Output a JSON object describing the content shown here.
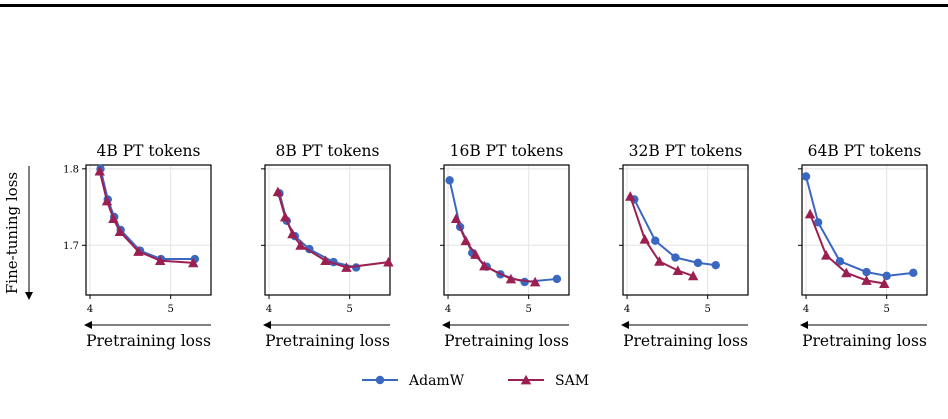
{
  "colors": {
    "adamw": "#3a67c0",
    "sam": "#9c1f52",
    "grid": "#e4e4e4"
  },
  "figure": {
    "ylabel": "Fine-tuning loss",
    "legend": {
      "placement": "bottom-center",
      "entries": [
        "AdamW",
        "SAM"
      ]
    }
  },
  "chart_data": [
    {
      "type": "line",
      "title": "4B PT tokens",
      "xlabel": "Pretraining loss",
      "ylabel": "Fine-tuning loss",
      "xlim": [
        3.95,
        5.5
      ],
      "ylim": [
        1.635,
        1.805
      ],
      "xticks": [
        4,
        5
      ],
      "yticks": [
        1.7,
        1.8
      ],
      "grid": true,
      "series": [
        {
          "name": "AdamW",
          "marker": "circle",
          "x": [
            4.13,
            4.22,
            4.3,
            4.38,
            4.62,
            4.88,
            5.3
          ],
          "y": [
            1.8,
            1.76,
            1.737,
            1.72,
            1.693,
            1.682,
            1.682
          ]
        },
        {
          "name": "SAM",
          "marker": "triangle",
          "x": [
            4.12,
            4.21,
            4.29,
            4.37,
            4.6,
            4.87,
            5.28
          ],
          "y": [
            1.797,
            1.758,
            1.735,
            1.718,
            1.692,
            1.68,
            1.677
          ]
        }
      ]
    },
    {
      "type": "line",
      "title": "8B PT tokens",
      "xlabel": "Pretraining loss",
      "ylabel": "",
      "xlim": [
        3.95,
        5.5
      ],
      "ylim": [
        1.635,
        1.805
      ],
      "xticks": [
        4,
        5
      ],
      "yticks": [
        1.7,
        1.8
      ],
      "grid": true,
      "series": [
        {
          "name": "AdamW",
          "marker": "circle",
          "x": [
            4.13,
            4.22,
            4.32,
            4.5,
            4.8,
            5.08
          ],
          "y": [
            1.768,
            1.732,
            1.712,
            1.695,
            1.678,
            1.671
          ]
        },
        {
          "name": "SAM",
          "marker": "triangle",
          "x": [
            4.11,
            4.2,
            4.29,
            4.39,
            4.7,
            4.96,
            5.48
          ],
          "y": [
            1.77,
            1.737,
            1.715,
            1.7,
            1.68,
            1.671,
            1.678
          ]
        }
      ]
    },
    {
      "type": "line",
      "title": "16B PT tokens",
      "xlabel": "Pretraining loss",
      "ylabel": "",
      "xlim": [
        3.95,
        5.5
      ],
      "ylim": [
        1.635,
        1.805
      ],
      "xticks": [
        4,
        5
      ],
      "yticks": [
        1.7,
        1.8
      ],
      "grid": true,
      "series": [
        {
          "name": "AdamW",
          "marker": "circle",
          "x": [
            4.02,
            4.15,
            4.3,
            4.48,
            4.65,
            4.95,
            5.35
          ],
          "y": [
            1.785,
            1.724,
            1.69,
            1.672,
            1.662,
            1.652,
            1.656
          ]
        },
        {
          "name": "SAM",
          "marker": "triangle",
          "x": [
            4.1,
            4.22,
            4.34,
            4.45,
            4.78,
            5.08
          ],
          "y": [
            1.735,
            1.706,
            1.688,
            1.673,
            1.656,
            1.652
          ]
        }
      ]
    },
    {
      "type": "line",
      "title": "32B PT tokens",
      "xlabel": "Pretraining loss",
      "ylabel": "",
      "xlim": [
        3.95,
        5.5
      ],
      "ylim": [
        1.635,
        1.805
      ],
      "xticks": [
        4,
        5
      ],
      "yticks": [
        1.7,
        1.8
      ],
      "grid": true,
      "series": [
        {
          "name": "AdamW",
          "marker": "circle",
          "x": [
            4.09,
            4.35,
            4.6,
            4.88,
            5.1
          ],
          "y": [
            1.76,
            1.706,
            1.684,
            1.677,
            1.674
          ]
        },
        {
          "name": "SAM",
          "marker": "triangle",
          "x": [
            4.04,
            4.22,
            4.4,
            4.63,
            4.82
          ],
          "y": [
            1.764,
            1.708,
            1.679,
            1.667,
            1.66
          ]
        }
      ]
    },
    {
      "type": "line",
      "title": "64B PT tokens",
      "xlabel": "Pretraining loss",
      "ylabel": "",
      "xlim": [
        3.95,
        5.5
      ],
      "ylim": [
        1.635,
        1.805
      ],
      "xticks": [
        4,
        5
      ],
      "yticks": [
        1.7,
        1.8
      ],
      "grid": true,
      "series": [
        {
          "name": "AdamW",
          "marker": "circle",
          "x": [
            4.0,
            4.15,
            4.42,
            4.75,
            5.0,
            5.33
          ],
          "y": [
            1.79,
            1.73,
            1.679,
            1.665,
            1.66,
            1.664
          ]
        },
        {
          "name": "SAM",
          "marker": "triangle",
          "x": [
            4.05,
            4.25,
            4.5,
            4.75,
            4.97
          ],
          "y": [
            1.741,
            1.687,
            1.664,
            1.654,
            1.65
          ]
        }
      ]
    }
  ]
}
